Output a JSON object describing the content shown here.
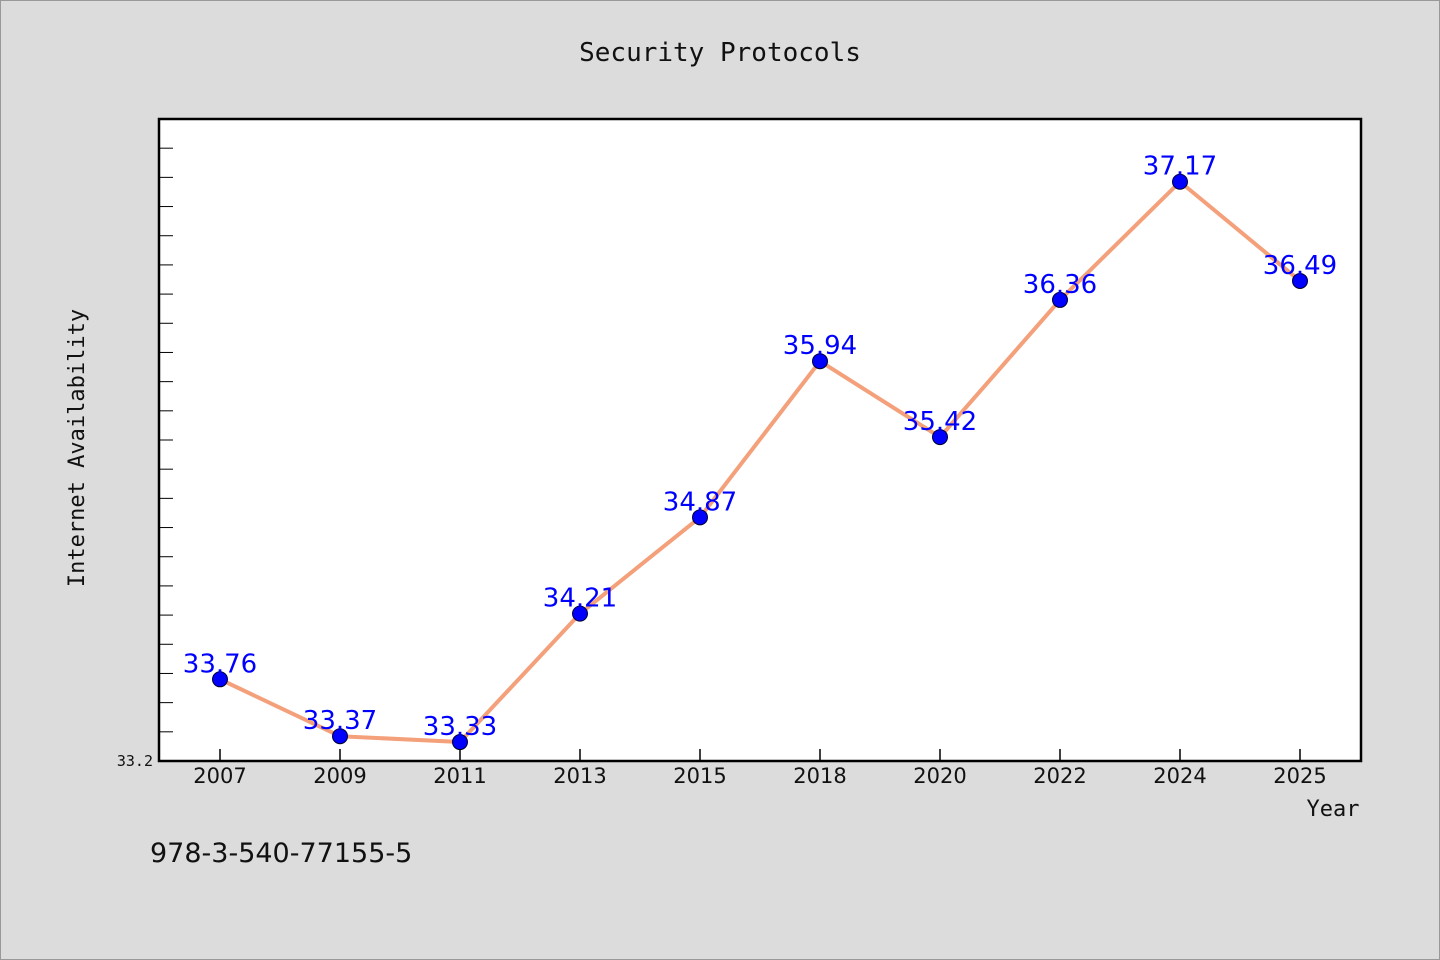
{
  "chart_data": {
    "type": "line",
    "title": "Security Protocols",
    "xlabel": "Year",
    "ylabel": "Internet Availability",
    "categories": [
      "2007",
      "2009",
      "2011",
      "2013",
      "2015",
      "2018",
      "2020",
      "2022",
      "2024",
      "2025"
    ],
    "series": [
      {
        "values": [
          33.76,
          33.37,
          33.33,
          34.21,
          34.87,
          35.94,
          35.42,
          36.36,
          37.17,
          36.49
        ],
        "line_color": "#f4a07a",
        "marker_color": "#0000ff"
      }
    ],
    "data_labels": [
      "33.76",
      "33.37",
      "33.33",
      "34.21",
      "34.87",
      "35.94",
      "35.42",
      "36.36",
      "37.17",
      "36.49"
    ],
    "ylim": [
      33.2,
      37.6
    ],
    "y_tick_labels": [
      {
        "value": 33.2,
        "label": "33.2"
      }
    ],
    "y_minor_tick_step": 0.2,
    "grid": false,
    "legend": "none",
    "plot_background": "#ffffff",
    "figure_background": "#dcdcdc"
  },
  "footer": {
    "text": "978-3-540-77155-5"
  }
}
